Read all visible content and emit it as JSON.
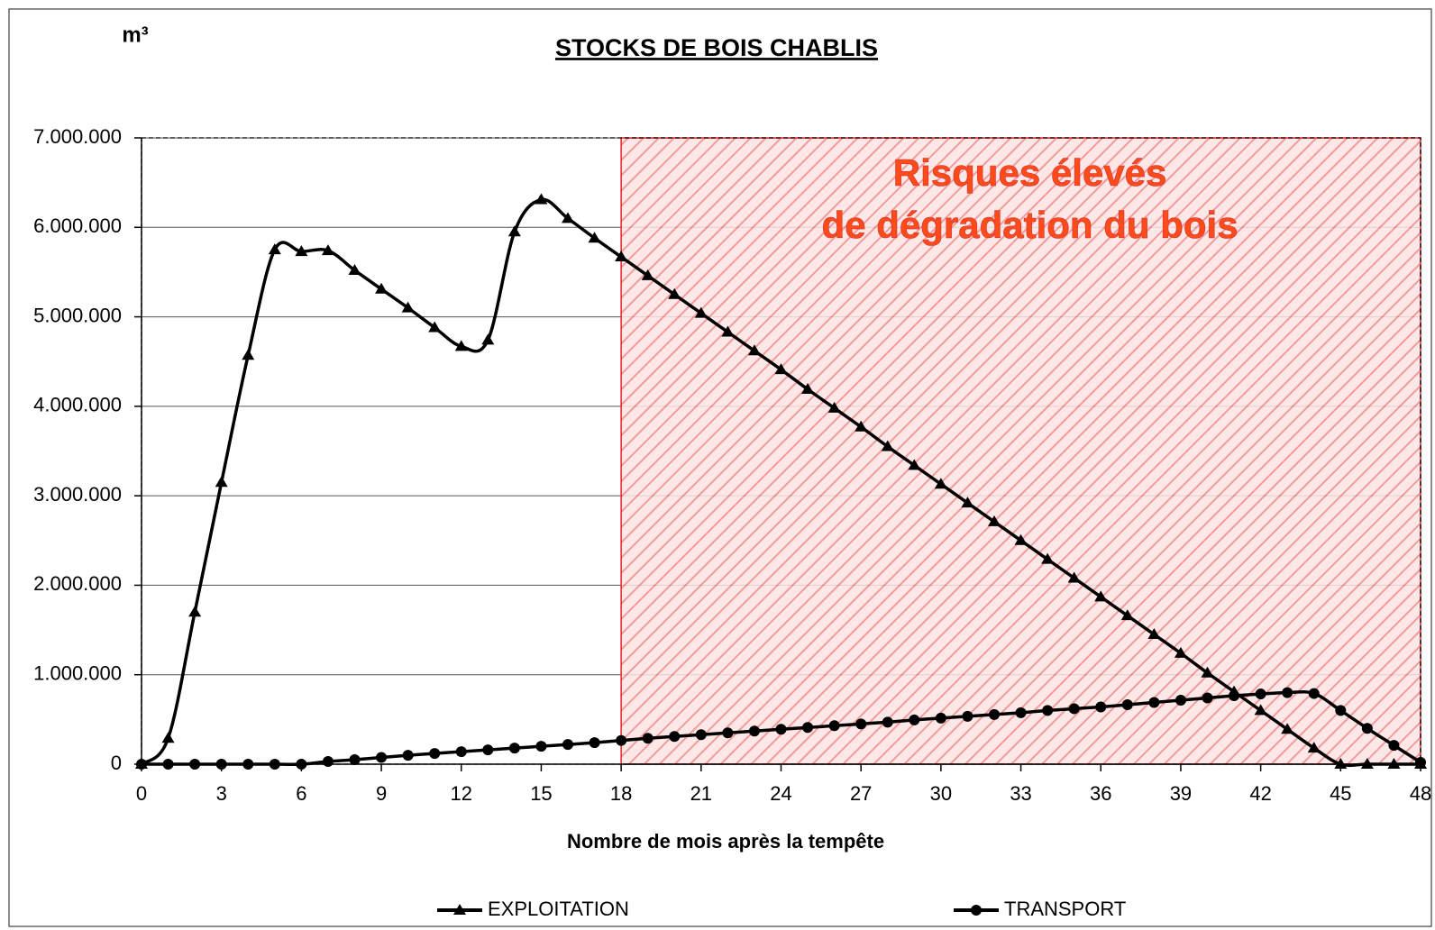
{
  "chart_data": {
    "type": "line",
    "title": "STOCKS DE BOIS CHABLIS",
    "y_unit": "m³",
    "xlabel": "Nombre de mois après la tempête",
    "annotation": [
      "Risques élevés",
      "de dégradation du bois"
    ],
    "shaded_range": [
      18,
      48
    ],
    "x": [
      0,
      1,
      2,
      3,
      4,
      5,
      6,
      7,
      8,
      9,
      10,
      11,
      12,
      13,
      14,
      15,
      16,
      17,
      18,
      19,
      20,
      21,
      22,
      23,
      24,
      25,
      26,
      27,
      28,
      29,
      30,
      31,
      32,
      33,
      34,
      35,
      36,
      37,
      38,
      39,
      40,
      41,
      42,
      43,
      44,
      45,
      46,
      47,
      48
    ],
    "series": [
      {
        "name": "EXPLOITATION",
        "color": "#000000",
        "marker": "triangle",
        "values": [
          0,
          290000,
          1700000,
          3150000,
          4570000,
          5750000,
          5730000,
          5740000,
          5520000,
          5310000,
          5100000,
          4880000,
          4670000,
          4740000,
          5950000,
          6310000,
          6100000,
          5880000,
          5670000,
          5460000,
          5250000,
          5040000,
          4830000,
          4620000,
          4410000,
          4190000,
          3980000,
          3770000,
          3550000,
          3340000,
          3130000,
          2920000,
          2710000,
          2500000,
          2290000,
          2080000,
          1870000,
          1660000,
          1450000,
          1240000,
          1020000,
          810000,
          600000,
          390000,
          180000,
          0,
          0,
          0,
          0
        ]
      },
      {
        "name": "TRANSPORT",
        "color": "#000000",
        "marker": "circle",
        "values": [
          0,
          0,
          0,
          0,
          0,
          0,
          0,
          30000,
          50000,
          75000,
          100000,
          120000,
          140000,
          160000,
          180000,
          200000,
          220000,
          240000,
          265000,
          290000,
          310000,
          330000,
          350000,
          370000,
          390000,
          410000,
          430000,
          450000,
          470000,
          495000,
          515000,
          535000,
          555000,
          575000,
          600000,
          620000,
          640000,
          665000,
          690000,
          715000,
          740000,
          765000,
          785000,
          800000,
          790000,
          600000,
          400000,
          210000,
          20000
        ]
      }
    ],
    "xlim": [
      0,
      48
    ],
    "xticks": [
      0,
      3,
      6,
      9,
      12,
      15,
      18,
      21,
      24,
      27,
      30,
      33,
      36,
      39,
      42,
      45,
      48
    ],
    "ylim": [
      0,
      7000000
    ],
    "yticks": [
      0,
      {
        "value": 1000000,
        "label": "1.000.000"
      },
      {
        "value": 2000000,
        "label": "2.000.000"
      },
      {
        "value": 3000000,
        "label": "3.000.000"
      },
      {
        "value": 4000000,
        "label": "4.000.000"
      },
      {
        "value": 5000000,
        "label": "5.000.000"
      },
      {
        "value": 6000000,
        "label": "6.000.000"
      },
      {
        "value": 7000000,
        "label": "7.000.000"
      }
    ],
    "grid": true,
    "legend": "bottom"
  }
}
